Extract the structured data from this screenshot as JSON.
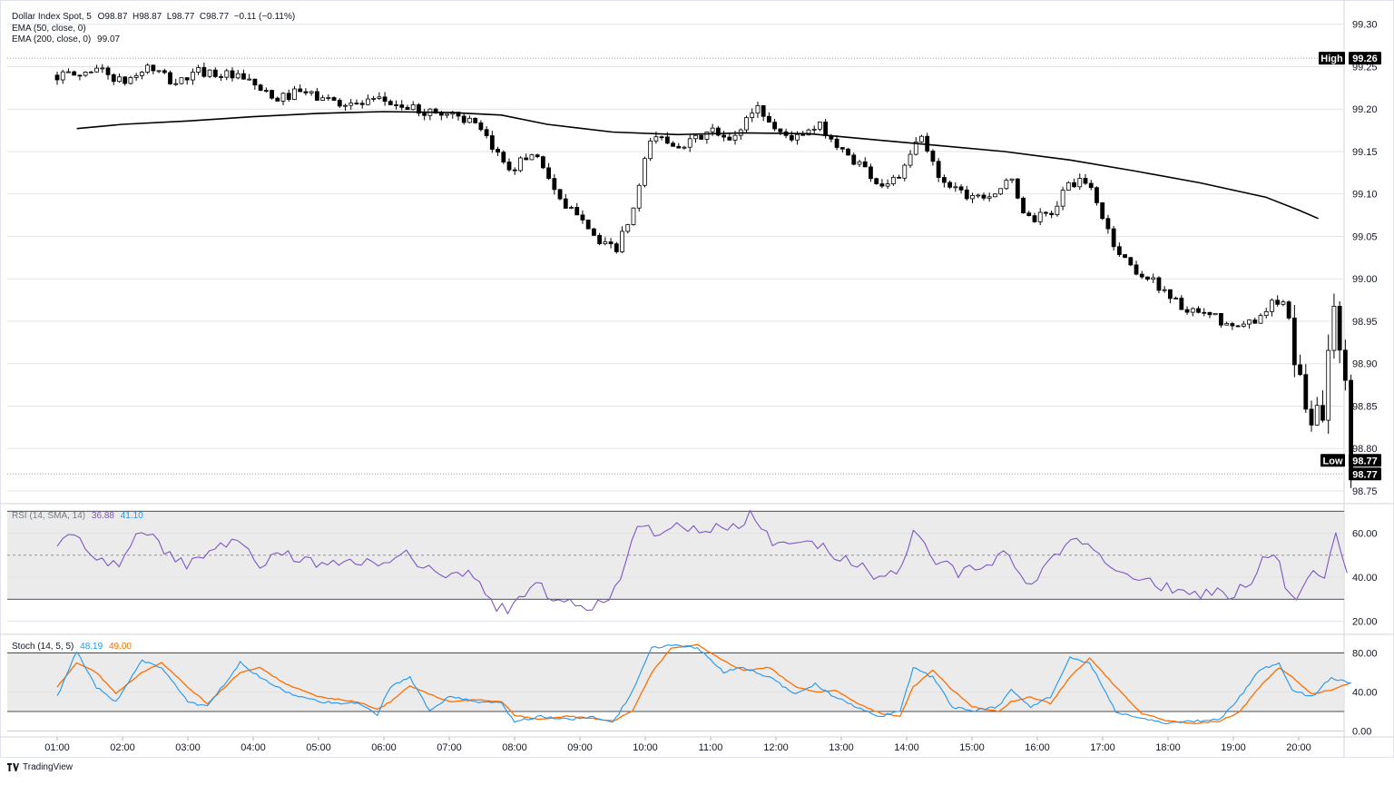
{
  "header": {
    "symbol": "Dollar Index Spot, 5",
    "ohlc": "O98.87  H98.87  L98.77  C98.77  −0.11 (−0.11%)",
    "ema50": "EMA (50, close, 0)",
    "ema200_label": "EMA (200, close, 0)",
    "ema200_value": "99.07"
  },
  "price_markers": {
    "high_label": "High",
    "high_value": "99.26",
    "low_label": "Low",
    "low_value": "98.77",
    "close_value": "98.77"
  },
  "rsi_legend": {
    "label": "RSI (14, SMA, 14)",
    "rsi": "36.88",
    "sma": "41.10"
  },
  "stoch_legend": {
    "label": "Stoch (14, 5, 5)",
    "k": "48.19",
    "d": "49.00"
  },
  "footer": {
    "brand": "TradingView"
  },
  "colors": {
    "candle_up": "#ffffff",
    "candle_down": "#000000",
    "ema200": "#000000",
    "rsi_line": "#7e57c2",
    "stoch_k": "#2196f3",
    "stoch_d": "#ff6d00",
    "band_fill": "#e6e6e6",
    "grid": "#e0e3eb"
  },
  "chart_data": [
    {
      "type": "candlestick",
      "title": "Dollar Index Spot, 5",
      "x_ticks": [
        "01:00",
        "02:00",
        "03:00",
        "04:00",
        "05:00",
        "06:00",
        "07:00",
        "08:00",
        "09:00",
        "10:00",
        "11:00",
        "12:00",
        "13:00",
        "14:00",
        "15:00",
        "16:00",
        "17:00",
        "18:00",
        "19:00",
        "20:00"
      ],
      "y_ticks": [
        98.75,
        98.8,
        98.85,
        98.9,
        98.95,
        99.0,
        99.05,
        99.1,
        99.15,
        99.2,
        99.25,
        99.3
      ],
      "ylim": [
        98.735,
        99.32
      ],
      "high": 99.26,
      "low": 98.77,
      "legend_placement": "top-left",
      "ema200": [
        [
          0.3,
          99.177
        ],
        [
          1,
          99.182
        ],
        [
          2,
          99.186
        ],
        [
          3,
          99.191
        ],
        [
          4,
          99.195
        ],
        [
          5,
          99.197
        ],
        [
          6,
          99.196
        ],
        [
          6.8,
          99.193
        ],
        [
          7.5,
          99.182
        ],
        [
          8.5,
          99.173
        ],
        [
          9.5,
          99.17
        ],
        [
          10.5,
          99.172
        ],
        [
          11.5,
          99.171
        ],
        [
          12.5,
          99.164
        ],
        [
          13.5,
          99.157
        ],
        [
          14.5,
          99.15
        ],
        [
          15.5,
          99.14
        ],
        [
          16.5,
          99.127
        ],
        [
          17.5,
          99.113
        ],
        [
          18.5,
          99.096
        ],
        [
          19.0,
          99.081
        ],
        [
          19.3,
          99.071
        ]
      ],
      "anchors": [
        [
          0.35,
          99.24
        ],
        [
          0.6,
          99.25
        ],
        [
          1.0,
          99.23
        ],
        [
          1.4,
          99.25
        ],
        [
          1.8,
          99.23
        ],
        [
          2.2,
          99.245
        ],
        [
          2.6,
          99.24
        ],
        [
          3.0,
          99.23
        ],
        [
          3.3,
          99.21
        ],
        [
          3.7,
          99.22
        ],
        [
          4.2,
          99.21
        ],
        [
          4.6,
          99.205
        ],
        [
          5.0,
          99.21
        ],
        [
          5.4,
          99.2
        ],
        [
          5.8,
          99.195
        ],
        [
          6.1,
          99.195
        ],
        [
          6.4,
          99.18
        ],
        [
          6.7,
          99.15
        ],
        [
          6.95,
          99.13
        ],
        [
          7.3,
          99.15
        ],
        [
          7.5,
          99.125
        ],
        [
          7.75,
          99.08
        ],
        [
          8.0,
          99.08
        ],
        [
          8.3,
          99.04
        ],
        [
          8.55,
          99.035
        ],
        [
          8.8,
          99.075
        ],
        [
          9.1,
          99.17
        ],
        [
          9.4,
          99.16
        ],
        [
          9.7,
          99.16
        ],
        [
          10.0,
          99.175
        ],
        [
          10.3,
          99.16
        ],
        [
          10.7,
          99.205
        ],
        [
          11.0,
          99.175
        ],
        [
          11.3,
          99.165
        ],
        [
          11.7,
          99.18
        ],
        [
          12.0,
          99.15
        ],
        [
          12.3,
          99.135
        ],
        [
          12.6,
          99.11
        ],
        [
          12.95,
          99.125
        ],
        [
          13.2,
          99.17
        ],
        [
          13.5,
          99.12
        ],
        [
          13.9,
          99.1
        ],
        [
          14.3,
          99.1
        ],
        [
          14.6,
          99.115
        ],
        [
          14.85,
          99.07
        ],
        [
          15.2,
          99.075
        ],
        [
          15.5,
          99.115
        ],
        [
          15.8,
          99.11
        ],
        [
          16.2,
          99.035
        ],
        [
          16.5,
          99.01
        ],
        [
          16.9,
          98.99
        ],
        [
          17.3,
          98.96
        ],
        [
          17.7,
          98.955
        ],
        [
          18.0,
          98.94
        ],
        [
          18.3,
          98.95
        ],
        [
          18.55,
          98.97
        ],
        [
          18.8,
          98.97
        ],
        [
          19.0,
          98.88
        ],
        [
          19.2,
          98.84
        ],
        [
          19.4,
          98.85
        ],
        [
          19.55,
          98.99
        ],
        [
          19.7,
          98.87
        ],
        [
          19.8,
          98.84
        ]
      ]
    },
    {
      "type": "line",
      "title": "RSI (14, SMA, 14)",
      "y_ticks": [
        20,
        40,
        60
      ],
      "band": [
        30,
        70
      ],
      "midline": 50,
      "ylim": [
        14,
        73
      ],
      "series": [
        {
          "name": "RSI",
          "anchors": [
            [
              0.0,
              55
            ],
            [
              0.3,
              60
            ],
            [
              0.6,
              49
            ],
            [
              0.9,
              45
            ],
            [
              1.2,
              58
            ],
            [
              1.4,
              62
            ],
            [
              1.7,
              50
            ],
            [
              2.0,
              45
            ],
            [
              2.3,
              52
            ],
            [
              2.8,
              59
            ],
            [
              3.1,
              46
            ],
            [
              3.5,
              50
            ],
            [
              3.8,
              48
            ],
            [
              4.1,
              44
            ],
            [
              4.5,
              48
            ],
            [
              5.0,
              47
            ],
            [
              5.3,
              51
            ],
            [
              5.7,
              44
            ],
            [
              6.0,
              41
            ],
            [
              6.3,
              43
            ],
            [
              6.7,
              27
            ],
            [
              6.9,
              25
            ],
            [
              7.3,
              38
            ],
            [
              7.6,
              30
            ],
            [
              7.9,
              28
            ],
            [
              8.2,
              27
            ],
            [
              8.5,
              31
            ],
            [
              8.7,
              48
            ],
            [
              8.9,
              64
            ],
            [
              9.2,
              60
            ],
            [
              9.5,
              65
            ],
            [
              9.8,
              60
            ],
            [
              10.1,
              63
            ],
            [
              10.4,
              62
            ],
            [
              10.6,
              69
            ],
            [
              10.9,
              57
            ],
            [
              11.2,
              54
            ],
            [
              11.5,
              58
            ],
            [
              11.9,
              50
            ],
            [
              12.2,
              47
            ],
            [
              12.5,
              40
            ],
            [
              12.9,
              44
            ],
            [
              13.1,
              61
            ],
            [
              13.4,
              49
            ],
            [
              13.8,
              42
            ],
            [
              14.2,
              45
            ],
            [
              14.5,
              50
            ],
            [
              14.9,
              35
            ],
            [
              15.2,
              48
            ],
            [
              15.5,
              56
            ],
            [
              15.8,
              55
            ],
            [
              16.1,
              43
            ],
            [
              16.5,
              41
            ],
            [
              16.9,
              36
            ],
            [
              17.3,
              32
            ],
            [
              17.7,
              33
            ],
            [
              18.0,
              32
            ],
            [
              18.3,
              40
            ],
            [
              18.5,
              52
            ],
            [
              18.7,
              48
            ],
            [
              18.8,
              33
            ],
            [
              19.0,
              31
            ],
            [
              19.2,
              46
            ],
            [
              19.4,
              38
            ],
            [
              19.55,
              60
            ],
            [
              19.7,
              45
            ],
            [
              19.8,
              36.9
            ]
          ]
        },
        {
          "name": "SMA",
          "anchors": []
        }
      ]
    },
    {
      "type": "line",
      "title": "Stoch (14, 5, 5)",
      "y_ticks": [
        0,
        40,
        80
      ],
      "band": [
        20,
        80
      ],
      "ylim": [
        -6,
        98
      ],
      "series": [
        {
          "name": "%K",
          "anchors": [
            [
              0.0,
              35
            ],
            [
              0.3,
              82
            ],
            [
              0.6,
              45
            ],
            [
              0.9,
              30
            ],
            [
              1.3,
              72
            ],
            [
              1.6,
              65
            ],
            [
              2.0,
              30
            ],
            [
              2.3,
              25
            ],
            [
              2.8,
              70
            ],
            [
              3.1,
              55
            ],
            [
              3.5,
              40
            ],
            [
              4.0,
              30
            ],
            [
              4.6,
              28
            ],
            [
              4.9,
              17
            ],
            [
              5.1,
              45
            ],
            [
              5.4,
              55
            ],
            [
              5.7,
              20
            ],
            [
              6.0,
              35
            ],
            [
              6.4,
              30
            ],
            [
              6.8,
              28
            ],
            [
              7.0,
              10
            ],
            [
              7.4,
              15
            ],
            [
              7.8,
              12
            ],
            [
              8.2,
              14
            ],
            [
              8.5,
              8
            ],
            [
              8.8,
              40
            ],
            [
              9.1,
              85
            ],
            [
              9.4,
              88
            ],
            [
              9.8,
              85
            ],
            [
              10.2,
              60
            ],
            [
              10.5,
              65
            ],
            [
              10.9,
              55
            ],
            [
              11.3,
              38
            ],
            [
              11.6,
              48
            ],
            [
              11.9,
              35
            ],
            [
              12.2,
              25
            ],
            [
              12.6,
              15
            ],
            [
              12.9,
              20
            ],
            [
              13.1,
              65
            ],
            [
              13.4,
              55
            ],
            [
              13.7,
              25
            ],
            [
              14.0,
              20
            ],
            [
              14.4,
              25
            ],
            [
              14.6,
              42
            ],
            [
              14.9,
              25
            ],
            [
              15.2,
              35
            ],
            [
              15.5,
              75
            ],
            [
              15.8,
              70
            ],
            [
              16.2,
              20
            ],
            [
              16.6,
              12
            ],
            [
              17.0,
              8
            ],
            [
              17.4,
              10
            ],
            [
              17.8,
              12
            ],
            [
              18.1,
              35
            ],
            [
              18.4,
              62
            ],
            [
              18.7,
              70
            ],
            [
              18.9,
              42
            ],
            [
              19.2,
              35
            ],
            [
              19.5,
              55
            ],
            [
              19.8,
              48.2
            ]
          ]
        },
        {
          "name": "%D",
          "anchors": [
            [
              0.0,
              45
            ],
            [
              0.3,
              70
            ],
            [
              0.6,
              60
            ],
            [
              0.9,
              38
            ],
            [
              1.3,
              60
            ],
            [
              1.6,
              70
            ],
            [
              2.0,
              45
            ],
            [
              2.3,
              28
            ],
            [
              2.8,
              60
            ],
            [
              3.1,
              65
            ],
            [
              3.5,
              48
            ],
            [
              4.0,
              35
            ],
            [
              4.6,
              30
            ],
            [
              4.9,
              22
            ],
            [
              5.1,
              30
            ],
            [
              5.4,
              46
            ],
            [
              5.7,
              38
            ],
            [
              6.0,
              30
            ],
            [
              6.4,
              32
            ],
            [
              6.8,
              30
            ],
            [
              7.0,
              16
            ],
            [
              7.4,
              12
            ],
            [
              7.8,
              15
            ],
            [
              8.2,
              13
            ],
            [
              8.5,
              10
            ],
            [
              8.8,
              20
            ],
            [
              9.1,
              60
            ],
            [
              9.4,
              85
            ],
            [
              9.8,
              88
            ],
            [
              10.2,
              72
            ],
            [
              10.5,
              62
            ],
            [
              10.9,
              65
            ],
            [
              11.3,
              45
            ],
            [
              11.6,
              40
            ],
            [
              11.9,
              42
            ],
            [
              12.2,
              30
            ],
            [
              12.6,
              18
            ],
            [
              12.9,
              15
            ],
            [
              13.1,
              45
            ],
            [
              13.4,
              62
            ],
            [
              13.7,
              42
            ],
            [
              14.0,
              25
            ],
            [
              14.4,
              20
            ],
            [
              14.6,
              30
            ],
            [
              14.9,
              35
            ],
            [
              15.2,
              28
            ],
            [
              15.5,
              55
            ],
            [
              15.8,
              75
            ],
            [
              16.2,
              45
            ],
            [
              16.6,
              18
            ],
            [
              17.0,
              10
            ],
            [
              17.4,
              8
            ],
            [
              17.8,
              10
            ],
            [
              18.1,
              20
            ],
            [
              18.4,
              45
            ],
            [
              18.7,
              65
            ],
            [
              18.9,
              55
            ],
            [
              19.2,
              38
            ],
            [
              19.5,
              42
            ],
            [
              19.8,
              49.0
            ]
          ]
        }
      ]
    }
  ]
}
